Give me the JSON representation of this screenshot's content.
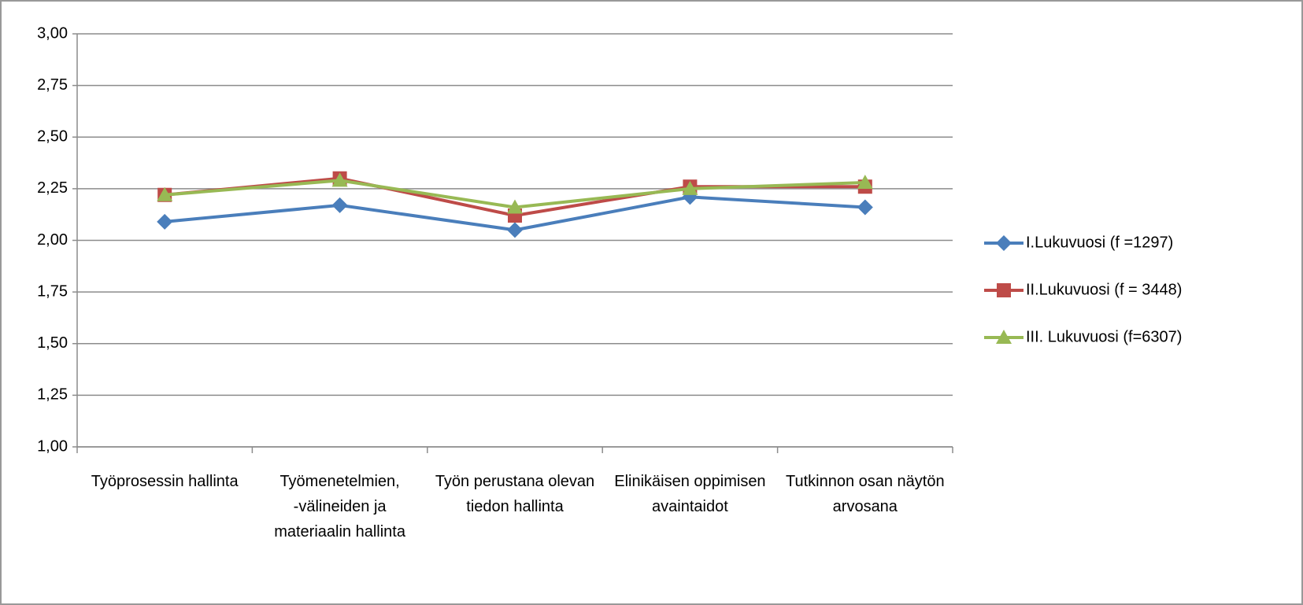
{
  "chart_data": {
    "type": "line",
    "categories": [
      "Työprosessin hallinta",
      "Työmenetelmien, -välineiden ja materiaalin hallinta",
      "Työn perustana olevan tiedon hallinta",
      "Elinikäisen oppimisen avaintaidot",
      "Tutkinnon osan näytön arvosana"
    ],
    "series": [
      {
        "name": "I.Lukuvuosi (f =1297)",
        "color": "#4a7ebb",
        "marker": "diamond",
        "values": [
          2.09,
          2.17,
          2.05,
          2.21,
          2.16
        ]
      },
      {
        "name": "II.Lukuvuosi (f = 3448)",
        "color": "#be4b48",
        "marker": "square",
        "values": [
          2.22,
          2.3,
          2.12,
          2.26,
          2.26
        ]
      },
      {
        "name": "III. Lukuvuosi (f=6307)",
        "color": "#98b954",
        "marker": "triangle",
        "values": [
          2.22,
          2.29,
          2.16,
          2.25,
          2.28
        ]
      }
    ],
    "ylim": [
      1,
      3
    ],
    "yticks": [
      {
        "value": 1,
        "label": "1,00"
      },
      {
        "value": 1.25,
        "label": "1,25"
      },
      {
        "value": 1.5,
        "label": "1,50"
      },
      {
        "value": 1.75,
        "label": "1,75"
      },
      {
        "value": 2,
        "label": "2,00"
      },
      {
        "value": 2.25,
        "label": "2,25"
      },
      {
        "value": 2.5,
        "label": "2,50"
      },
      {
        "value": 2.75,
        "label": "2,75"
      },
      {
        "value": 3,
        "label": "3,00"
      }
    ],
    "grid": true,
    "legend": "right"
  }
}
